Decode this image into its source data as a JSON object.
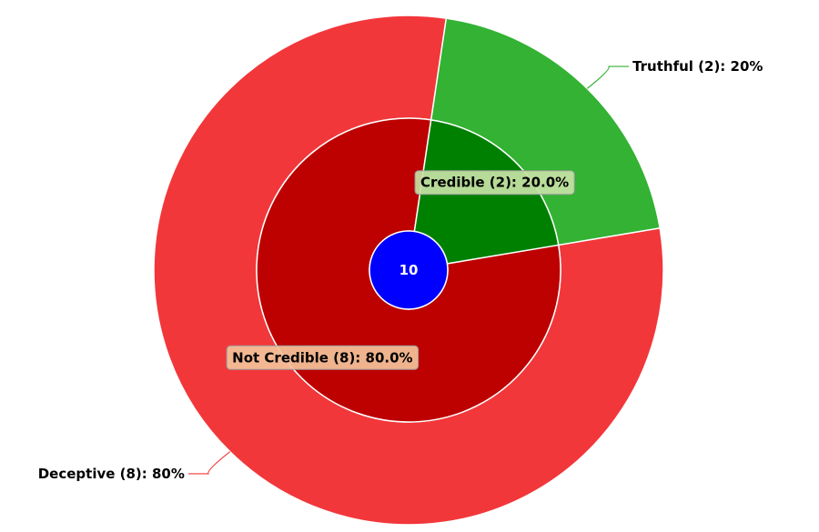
{
  "chart_data": {
    "type": "pie",
    "subtype": "sunburst",
    "total": 10,
    "inner_ring": [
      {
        "name": "Not Credible",
        "count": 8,
        "percent": 80.0,
        "color": "#bd0000",
        "label_bg": "#f3c29a",
        "label": "Not Credible (8): 80.0%"
      },
      {
        "name": "Credible",
        "count": 2,
        "percent": 20.0,
        "color": "#008000",
        "label_bg": "#c6e2a4",
        "label": "Credible (2): 20.0%"
      }
    ],
    "outer_ring": [
      {
        "name": "Deceptive",
        "count": 8,
        "percent": 80,
        "color": "#f2373a",
        "label": "Deceptive (8): 80%"
      },
      {
        "name": "Truthful",
        "count": 2,
        "percent": 20,
        "color": "#33b233",
        "label": "Truthful (2): 20%"
      }
    ],
    "center": {
      "value": "10",
      "color": "#0000ff"
    },
    "legend": "none"
  }
}
